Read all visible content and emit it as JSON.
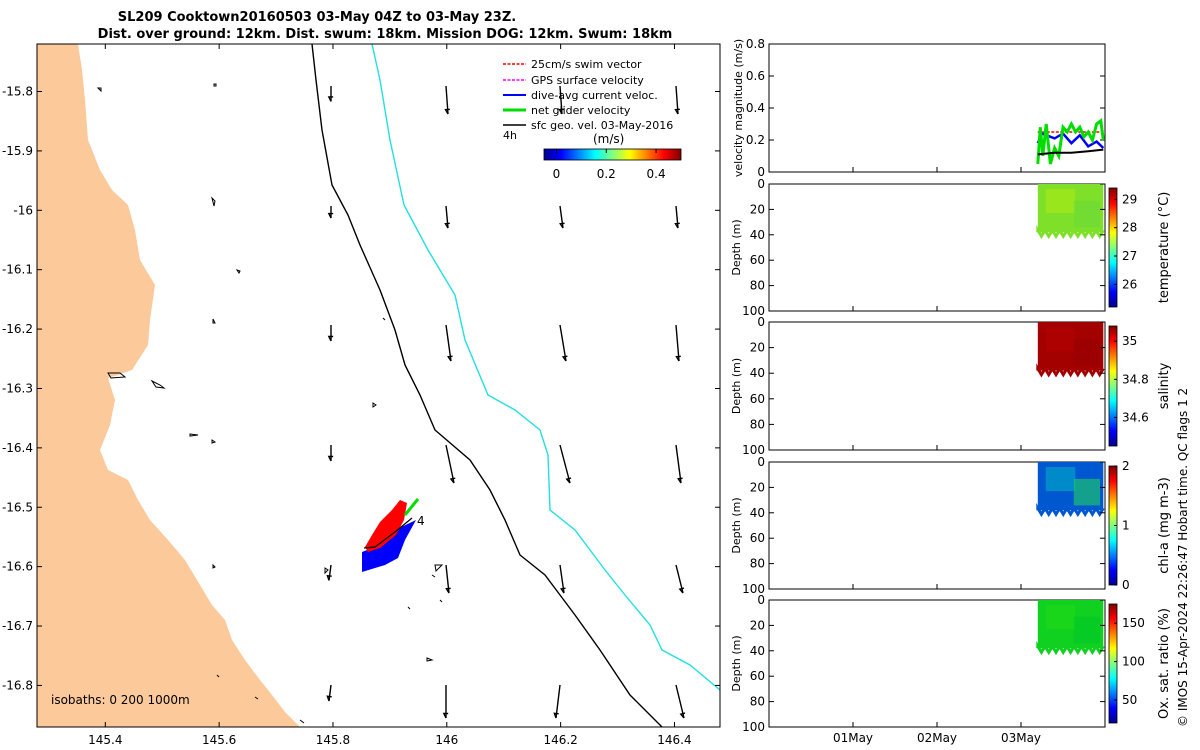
{
  "title": {
    "line1": "SL209 Cooktown20160503 03-May 04Z to 03-May 23Z.",
    "line2": "Dist. over ground: 12km. Dist. swum: 18km. Mission DOG: 12km. Swum: 18km"
  },
  "footer": "© IMOS 15-Apr-2024 22:26:47 Hobart time. QC flags 1  2",
  "colors": {
    "land": "#fcc99b",
    "swim_vector": "#ff0000",
    "gps_velocity": "#ff00ff",
    "dive_current": "#0000ff",
    "net_velocity": "#00dd00",
    "sfc_geo": "#000000",
    "isobath_200": "#000000",
    "isobath_1000": "#22e0e0"
  },
  "map": {
    "lon_ticks": [
      "145.4",
      "145.6",
      "145.8",
      "146",
      "146.2",
      "146.4"
    ],
    "lat_ticks": [
      "-15.8",
      "-15.9",
      "-16",
      "-16.1",
      "-16.2",
      "-16.3",
      "-16.4",
      "-16.5",
      "-16.6",
      "-16.7",
      "-16.8"
    ],
    "xlim": [
      145.28,
      146.48
    ],
    "ylim": [
      -16.87,
      -15.72
    ],
    "legend": {
      "swim": "25cm/s swim vector",
      "gps": "GPS surface velocity",
      "dive": "dive-avg current veloc.",
      "net": "net glider velocity",
      "sfc": "sfc geo. vel. 03-May-2016",
      "time_label": "4h"
    },
    "colorbar": {
      "label": "(m/s)",
      "ticks": [
        "0",
        "0.2",
        "0.4"
      ],
      "range": [
        -0.05,
        0.5
      ]
    },
    "isobaths_label": "isobaths: 0   200  1000m",
    "glider_time_label": "4"
  },
  "chart_data": [
    {
      "type": "line",
      "title": "",
      "xlabel": "",
      "ylabel": "velocity magnitude (m/s)",
      "ylim": [
        0,
        0.8
      ],
      "y_ticks": [
        "0",
        "0.2",
        "0.4",
        "0.6",
        "0.8"
      ],
      "x_ticks": [
        "01May",
        "02May",
        "03May"
      ],
      "series": [
        {
          "values": [
            [
              3.2,
              0.25
            ],
            [
              3.4,
              0.25
            ],
            [
              3.6,
              0.25
            ],
            [
              3.8,
              0.25
            ],
            [
              3.98,
              0.25
            ]
          ]
        },
        {
          "values": [
            [
              3.2,
              0.18
            ],
            [
              3.25,
              0.24
            ],
            [
              3.3,
              0.23
            ],
            [
              3.4,
              0.21
            ],
            [
              3.5,
              0.24
            ],
            [
              3.6,
              0.18
            ],
            [
              3.7,
              0.23
            ],
            [
              3.8,
              0.16
            ],
            [
              3.9,
              0.19
            ],
            [
              3.98,
              0.15
            ]
          ]
        },
        {
          "values": [
            [
              3.2,
              0.05
            ],
            [
              3.23,
              0.28
            ],
            [
              3.26,
              0.1
            ],
            [
              3.3,
              0.3
            ],
            [
              3.35,
              0.05
            ],
            [
              3.4,
              0.15
            ],
            [
              3.45,
              0.1
            ],
            [
              3.5,
              0.28
            ],
            [
              3.55,
              0.25
            ],
            [
              3.6,
              0.3
            ],
            [
              3.65,
              0.25
            ],
            [
              3.7,
              0.28
            ],
            [
              3.75,
              0.22
            ],
            [
              3.8,
              0.25
            ],
            [
              3.85,
              0.2
            ],
            [
              3.9,
              0.3
            ],
            [
              3.95,
              0.32
            ],
            [
              3.98,
              0.2
            ]
          ]
        },
        {
          "values": [
            [
              3.2,
              0.11
            ],
            [
              3.4,
              0.12
            ],
            [
              3.6,
              0.12
            ],
            [
              3.8,
              0.13
            ],
            [
              3.98,
              0.14
            ]
          ]
        }
      ]
    },
    {
      "type": "heatmap",
      "ylabel": "Depth (m)",
      "y_ticks": [
        "0",
        "20",
        "40",
        "60",
        "80",
        "100"
      ],
      "ylim": [
        0,
        100
      ],
      "x_range": [
        3.2,
        3.98
      ],
      "depth_range": [
        0,
        38
      ],
      "colorbar": {
        "label": "temperature (°C)",
        "ticks": [
          "26",
          "27",
          "28",
          "29"
        ],
        "range": [
          25.2,
          29.4
        ]
      }
    },
    {
      "type": "heatmap",
      "ylabel": "Depth (m)",
      "y_ticks": [
        "0",
        "20",
        "40",
        "60",
        "80",
        "100"
      ],
      "ylim": [
        0,
        100
      ],
      "x_range": [
        3.2,
        3.98
      ],
      "depth_range": [
        0,
        38
      ],
      "colorbar": {
        "label": "salinity",
        "ticks": [
          "34.6",
          "34.8",
          "35"
        ],
        "range": [
          34.45,
          35.08
        ]
      }
    },
    {
      "type": "heatmap",
      "ylabel": "Depth (m)",
      "y_ticks": [
        "0",
        "20",
        "40",
        "60",
        "80",
        "100"
      ],
      "ylim": [
        0,
        100
      ],
      "x_range": [
        3.2,
        3.98
      ],
      "depth_range": [
        0,
        38
      ],
      "colorbar": {
        "label": "chl-a (mg m-3)",
        "ticks": [
          "0",
          "1",
          "2"
        ],
        "range": [
          0,
          2
        ]
      }
    },
    {
      "type": "heatmap",
      "ylabel": "Depth (m)",
      "y_ticks": [
        "0",
        "20",
        "40",
        "60",
        "80",
        "100"
      ],
      "ylim": [
        0,
        100
      ],
      "x_range": [
        3.2,
        3.98
      ],
      "depth_range": [
        0,
        38
      ],
      "x_ticks": [
        "01May",
        "02May",
        "03May"
      ],
      "colorbar": {
        "label": "Ox. sat. ratio (%)",
        "ticks": [
          "50",
          "100",
          "150"
        ],
        "range": [
          20,
          175
        ]
      }
    }
  ]
}
